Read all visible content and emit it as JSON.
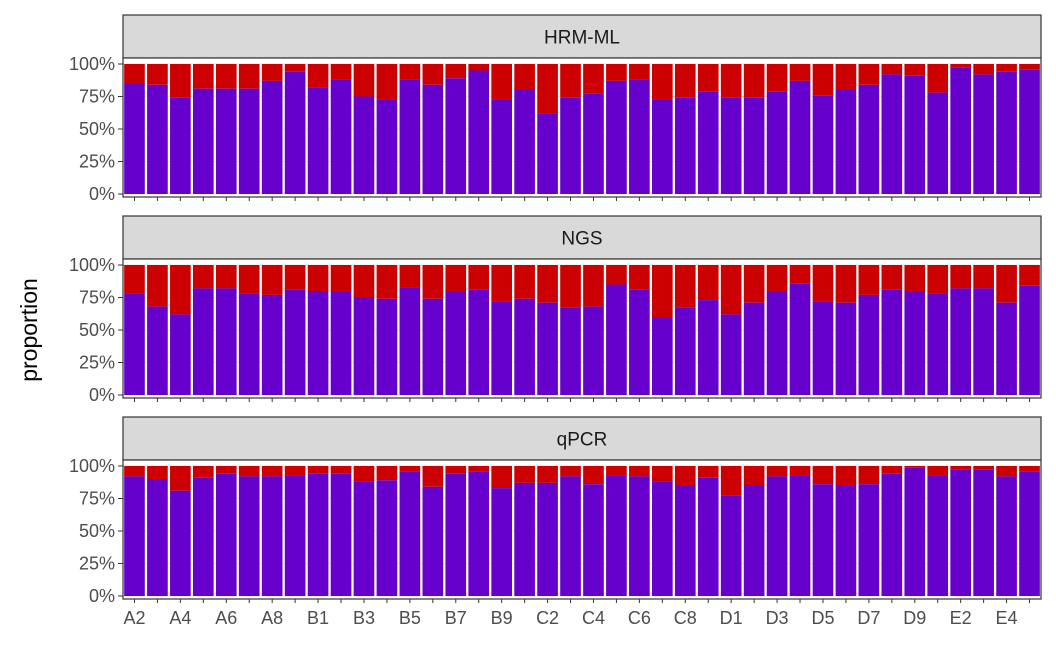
{
  "chart_data": {
    "type": "bar",
    "stacked": true,
    "ylabel": "proportion",
    "xlabel": "",
    "ylim": [
      0,
      1
    ],
    "y_ticks": [
      "0%",
      "25%",
      "50%",
      "75%",
      "100%"
    ],
    "categories": [
      "A2",
      "A3",
      "A4",
      "A5",
      "A6",
      "A7",
      "A8",
      "A9",
      "B1",
      "B2",
      "B3",
      "B4",
      "B5",
      "B6",
      "B7",
      "B8",
      "B9",
      "C1",
      "C2",
      "C3",
      "C4",
      "C5",
      "C6",
      "C7",
      "C8",
      "C9",
      "D1",
      "D2",
      "D3",
      "D4",
      "D5",
      "D6",
      "D7",
      "D8",
      "D9",
      "E1",
      "E2",
      "E3",
      "E4",
      "E5"
    ],
    "x_tick_labels": [
      "A2",
      "A4",
      "A6",
      "A8",
      "B1",
      "B3",
      "B5",
      "B7",
      "B9",
      "C2",
      "C4",
      "C6",
      "C8",
      "D1",
      "D3",
      "D5",
      "D7",
      "D9",
      "E2",
      "E4"
    ],
    "colors": {
      "lower": "#6600cc",
      "upper": "#cc0000"
    },
    "panels": [
      {
        "title": "HRM-ML",
        "values": [
          0.85,
          0.84,
          0.74,
          0.81,
          0.81,
          0.81,
          0.87,
          0.94,
          0.82,
          0.88,
          0.75,
          0.73,
          0.88,
          0.84,
          0.89,
          0.95,
          0.73,
          0.8,
          0.62,
          0.74,
          0.77,
          0.87,
          0.88,
          0.73,
          0.74,
          0.79,
          0.74,
          0.74,
          0.79,
          0.87,
          0.76,
          0.8,
          0.84,
          0.92,
          0.91,
          0.78,
          0.97,
          0.92,
          0.94,
          0.96
        ]
      },
      {
        "title": "NGS",
        "values": [
          0.78,
          0.68,
          0.62,
          0.82,
          0.82,
          0.78,
          0.77,
          0.81,
          0.8,
          0.8,
          0.75,
          0.74,
          0.83,
          0.74,
          0.8,
          0.81,
          0.72,
          0.74,
          0.71,
          0.67,
          0.68,
          0.85,
          0.81,
          0.6,
          0.67,
          0.73,
          0.62,
          0.71,
          0.8,
          0.86,
          0.72,
          0.71,
          0.77,
          0.81,
          0.8,
          0.78,
          0.82,
          0.82,
          0.71,
          0.84
        ]
      },
      {
        "title": "qPCR",
        "values": [
          0.92,
          0.9,
          0.81,
          0.91,
          0.94,
          0.92,
          0.92,
          0.93,
          0.94,
          0.94,
          0.88,
          0.89,
          0.96,
          0.84,
          0.94,
          0.96,
          0.83,
          0.87,
          0.87,
          0.92,
          0.86,
          0.93,
          0.92,
          0.88,
          0.85,
          0.91,
          0.77,
          0.85,
          0.92,
          0.93,
          0.86,
          0.85,
          0.86,
          0.94,
          0.99,
          0.93,
          0.97,
          0.97,
          0.92,
          0.96
        ]
      }
    ]
  }
}
